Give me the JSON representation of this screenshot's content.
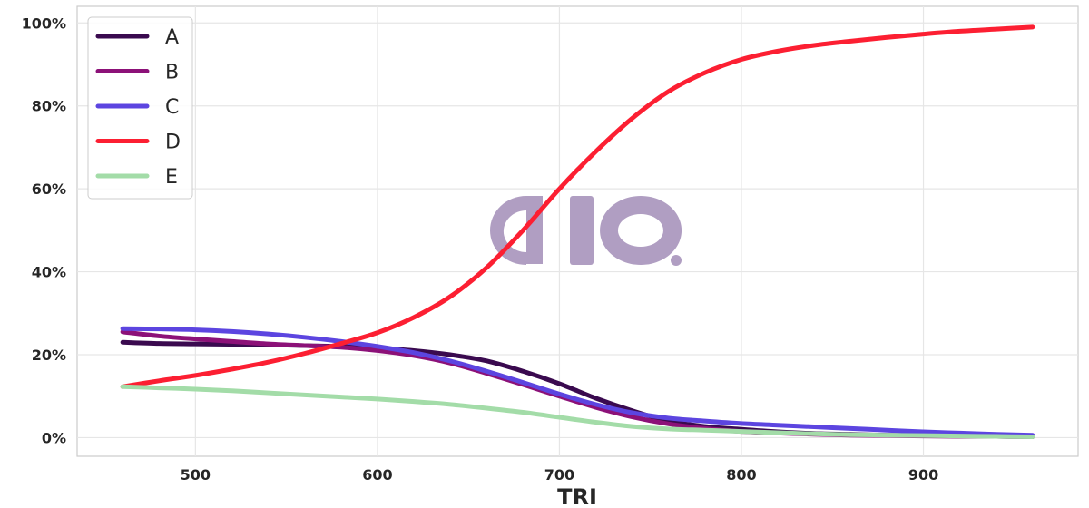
{
  "chart_data": {
    "type": "line",
    "title": "",
    "xlabel": "TRI",
    "ylabel": "",
    "xlim": [
      435,
      985
    ],
    "ylim": [
      -0.045,
      1.04
    ],
    "xticks": [
      500,
      600,
      700,
      800,
      900
    ],
    "yticks": [
      0,
      0.2,
      0.4,
      0.6,
      0.8,
      1.0
    ],
    "ytick_labels": [
      "0%",
      "20%",
      "40%",
      "60%",
      "80%",
      "100%"
    ],
    "grid": true,
    "legend_position": "top-left",
    "x": [
      460,
      480,
      500,
      520,
      540,
      560,
      580,
      600,
      620,
      640,
      660,
      680,
      700,
      720,
      740,
      760,
      780,
      800,
      820,
      840,
      860,
      880,
      900,
      920,
      940,
      960
    ],
    "series": [
      {
        "name": "A",
        "color": "#3a0a4f",
        "values": [
          0.23,
          0.227,
          0.226,
          0.225,
          0.224,
          0.222,
          0.22,
          0.216,
          0.21,
          0.2,
          0.185,
          0.16,
          0.13,
          0.095,
          0.065,
          0.04,
          0.027,
          0.02,
          0.014,
          0.01,
          0.008,
          0.006,
          0.005,
          0.004,
          0.003,
          0.003
        ]
      },
      {
        "name": "B",
        "color": "#8c1178",
        "values": [
          0.255,
          0.245,
          0.238,
          0.232,
          0.226,
          0.222,
          0.218,
          0.21,
          0.198,
          0.18,
          0.155,
          0.128,
          0.1,
          0.073,
          0.05,
          0.033,
          0.022,
          0.015,
          0.011,
          0.008,
          0.006,
          0.005,
          0.004,
          0.003,
          0.003,
          0.002
        ]
      },
      {
        "name": "C",
        "color": "#5c45e0",
        "values": [
          0.263,
          0.262,
          0.26,
          0.256,
          0.25,
          0.242,
          0.232,
          0.22,
          0.205,
          0.185,
          0.16,
          0.133,
          0.105,
          0.08,
          0.06,
          0.047,
          0.04,
          0.034,
          0.03,
          0.026,
          0.022,
          0.018,
          0.014,
          0.011,
          0.008,
          0.006
        ]
      },
      {
        "name": "D",
        "color": "#fc1f32",
        "values": [
          0.123,
          0.137,
          0.15,
          0.165,
          0.182,
          0.203,
          0.227,
          0.253,
          0.29,
          0.34,
          0.41,
          0.5,
          0.6,
          0.69,
          0.77,
          0.835,
          0.88,
          0.912,
          0.932,
          0.946,
          0.956,
          0.965,
          0.973,
          0.98,
          0.985,
          0.99
        ]
      },
      {
        "name": "E",
        "color": "#a3dca8",
        "values": [
          0.123,
          0.12,
          0.117,
          0.113,
          0.108,
          0.103,
          0.098,
          0.093,
          0.087,
          0.08,
          0.071,
          0.061,
          0.049,
          0.037,
          0.027,
          0.021,
          0.018,
          0.015,
          0.012,
          0.009,
          0.007,
          0.006,
          0.005,
          0.004,
          0.003,
          0.002
        ]
      }
    ]
  },
  "watermark": {
    "text": "aio",
    "color": "#b09ec2"
  }
}
